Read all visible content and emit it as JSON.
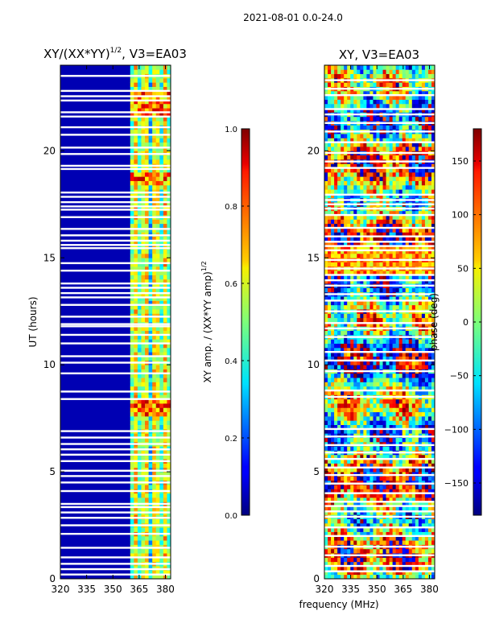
{
  "figure": {
    "suptitle": "2021-08-01 0.0-24.0",
    "shared_xlabel": "frequency (MHz)"
  },
  "chart_data": [
    {
      "type": "heatmap",
      "id": "amp",
      "title_main": "XY/(XX*YY)",
      "title_sup": "1/2",
      "title_tail": ", V3=EA03",
      "xlabel": "",
      "ylabel": "UT (hours)",
      "xlim": [
        320,
        383
      ],
      "ylim": [
        0,
        24
      ],
      "xticks": [
        320,
        335,
        350,
        365,
        380
      ],
      "yticks": [
        0,
        5,
        10,
        15,
        20
      ],
      "colorbar": {
        "label_main": "XY amp. / (XX*YY amp)",
        "label_sup": "1/2",
        "range": [
          0.0,
          1.0
        ],
        "ticks": [
          "0.0",
          "0.2",
          "0.4",
          "0.6",
          "0.8",
          "1.0"
        ],
        "tick_values": [
          0.0,
          0.2,
          0.4,
          0.6,
          0.8,
          1.0
        ],
        "colormap": "jet"
      },
      "rfi_band_mhz": [
        359,
        383
      ],
      "strong_rfi_hours": [
        [
          7.6,
          8.3
        ],
        [
          18.3,
          19.0
        ],
        [
          21.6,
          22.8
        ]
      ],
      "flagged_hours": [
        0.2,
        0.45,
        0.7,
        1.0,
        1.45,
        2.1,
        2.5,
        2.85,
        3.1,
        3.35,
        3.5,
        4.1,
        4.5,
        4.8,
        5.05,
        5.5,
        5.8,
        6.05,
        6.3,
        6.6,
        6.9,
        8.4,
        8.75,
        9.6,
        10.1,
        10.4,
        11.0,
        11.4,
        11.8,
        11.9,
        12.25,
        12.8,
        13.15,
        13.35,
        13.6,
        13.8,
        14.4,
        14.75,
        15.45,
        15.6,
        15.8,
        16.05,
        16.35,
        16.9,
        17.25,
        17.4,
        17.6,
        17.85,
        18.05,
        19.15,
        19.3,
        19.85,
        20.15,
        20.75,
        21.1,
        21.6,
        21.8,
        22.35,
        22.55,
        22.8,
        23.5
      ]
    },
    {
      "type": "heatmap",
      "id": "phase",
      "title": "XY, V3=EA03",
      "xlabel": "frequency (MHz)",
      "ylabel": "",
      "xlim": [
        320,
        383
      ],
      "ylim": [
        0,
        24
      ],
      "xticks": [
        320,
        335,
        350,
        365,
        380
      ],
      "yticks": [
        0,
        5,
        10,
        15,
        20
      ],
      "colorbar": {
        "label": "phase (deg)",
        "range": [
          -180,
          180
        ],
        "ticks": [
          "−150",
          "−100",
          "−50",
          "0",
          "50",
          "100",
          "150"
        ],
        "tick_values": [
          -150,
          -100,
          -50,
          0,
          50,
          100,
          150
        ],
        "colormap": "jet"
      },
      "flagged_hours": [
        0.35,
        0.6,
        1.1,
        1.5,
        2.0,
        2.4,
        2.9,
        3.15,
        3.4,
        3.6,
        4.0,
        4.45,
        4.85,
        5.2,
        5.6,
        5.9,
        6.25,
        6.65,
        7.0,
        8.5,
        8.8,
        9.7,
        10.2,
        10.6,
        11.3,
        11.7,
        11.95,
        12.5,
        13.0,
        13.3,
        13.7,
        13.95,
        14.2,
        14.5,
        14.9,
        15.35,
        15.55,
        15.75,
        16.0,
        16.4,
        17.0,
        17.3,
        17.5,
        17.7,
        17.95,
        19.2,
        19.5,
        19.9,
        20.4,
        20.9,
        21.3,
        21.7,
        21.95,
        22.6,
        22.9,
        23.3
      ]
    }
  ]
}
